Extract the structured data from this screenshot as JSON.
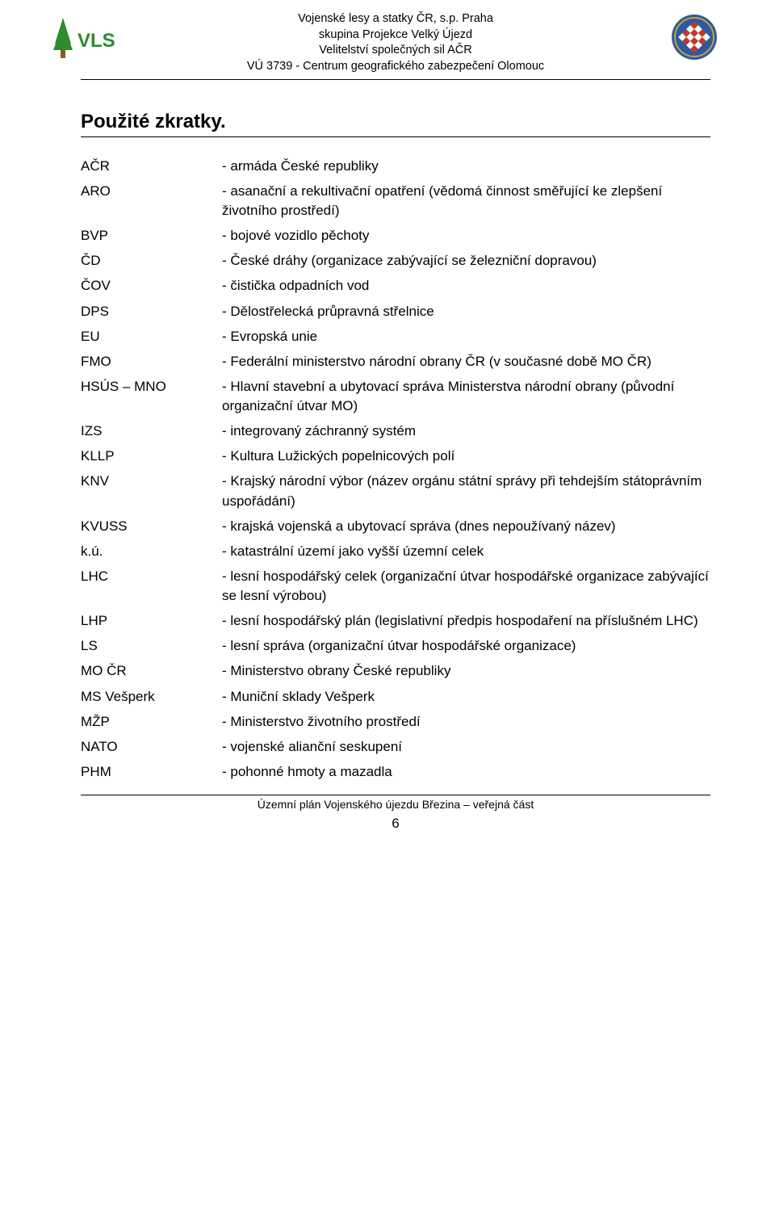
{
  "header": {
    "lines": [
      "Vojenské lesy a statky ČR, s.p. Praha",
      "skupina Projekce Velký Újezd",
      "Velitelství společných sil AČR",
      "VÚ 3739 - Centrum geografického zabezpečení Olomouc"
    ],
    "logo_left": {
      "text": "VLS",
      "tree_color": "#2e8b2e",
      "text_color": "#2e8b2e",
      "trunk_color": "#8b5a2b"
    },
    "logo_right": {
      "outer_color": "#2b5aa0",
      "border_color": "#c8a030",
      "check_a": "#c0392b",
      "check_b": "#ffffff"
    }
  },
  "section_title": "Použité zkratky.",
  "abbreviations": [
    {
      "key": "AČR",
      "def": "- armáda České republiky"
    },
    {
      "key": "ARO",
      "def": "- asanační a rekultivační opatření (vědomá činnost směřující ke zlepšení životního prostředí)"
    },
    {
      "key": "BVP",
      "def": "- bojové vozidlo pěchoty"
    },
    {
      "key": "ČD",
      "def": "- České dráhy (organizace zabývající se železniční dopravou)"
    },
    {
      "key": "ČOV",
      "def": "- čistička odpadních vod"
    },
    {
      "key": "DPS",
      "def": "- Dělostřelecká průpravná střelnice"
    },
    {
      "key": "EU",
      "def": "- Evropská unie"
    },
    {
      "key": "FMO",
      "def": "- Federální ministerstvo národní obrany ČR (v současné době MO ČR)"
    },
    {
      "key": "HSÚS – MNO",
      "def": "- Hlavní stavební a ubytovací správa Ministerstva národní obrany (původní organizační útvar MO)"
    },
    {
      "key": "IZS",
      "def": "- integrovaný záchranný systém"
    },
    {
      "key": "KLLP",
      "def": "- Kultura Lužických popelnicových polí"
    },
    {
      "key": "KNV",
      "def": "- Krajský národní výbor (název orgánu státní správy při tehdejším státoprávním uspořádání)"
    },
    {
      "key": "KVUSS",
      "def": "- krajská vojenská a ubytovací správa (dnes nepoužívaný název)"
    },
    {
      "key": "k.ú.",
      "def": "- katastrální území jako vyšší územní celek"
    },
    {
      "key": "LHC",
      "def": "- lesní hospodářský celek (organizační útvar hospodářské organizace zabývající se lesní výrobou)"
    },
    {
      "key": "LHP",
      "def": "- lesní hospodářský plán (legislativní předpis hospodaření na příslušném LHC)"
    },
    {
      "key": "LS",
      "def": "- lesní správa (organizační útvar hospodářské organizace)"
    },
    {
      "key": "MO ČR",
      "def": "- Ministerstvo obrany České republiky"
    },
    {
      "key": "MS Vešperk",
      "def": "- Muniční sklady Vešperk"
    },
    {
      "key": "MŽP",
      "def": "- Ministerstvo životního prostředí"
    },
    {
      "key": "NATO",
      "def": "- vojenské alianční seskupení"
    },
    {
      "key": "PHM",
      "def": "- pohonné hmoty a mazadla"
    }
  ],
  "footer": {
    "text": "Územní  plán  Vojenského újezdu Březina – veřejná část",
    "page_number": "6"
  },
  "colors": {
    "text": "#000000",
    "background": "#ffffff",
    "rule": "#000000"
  }
}
